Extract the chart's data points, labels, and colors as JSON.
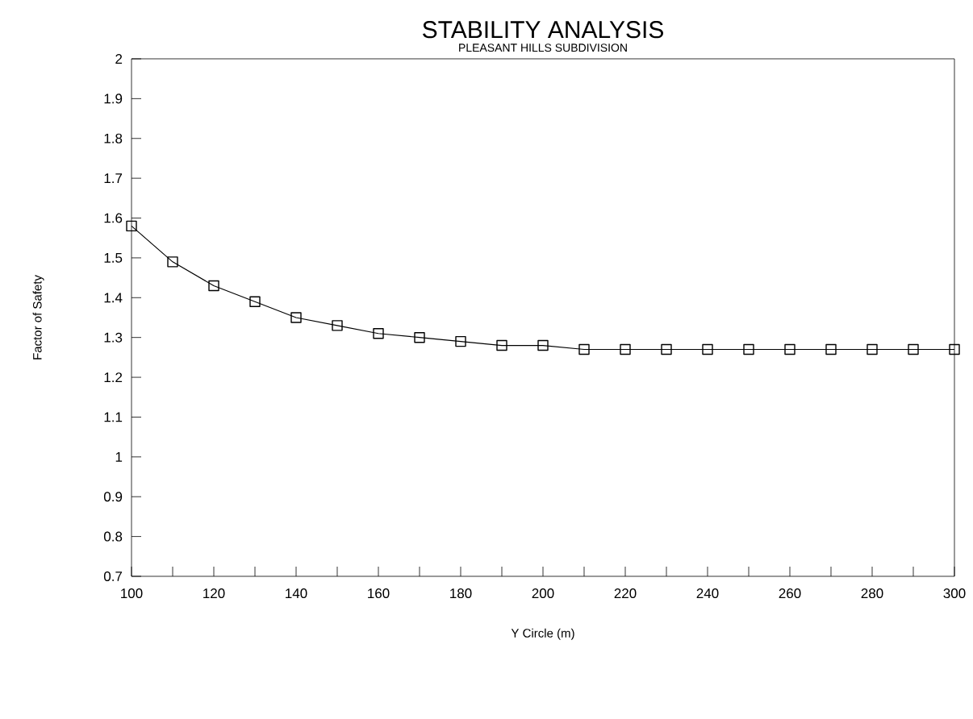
{
  "chart_data": {
    "type": "line",
    "title": "STABILITY ANALYSIS",
    "subtitle": "PLEASANT HILLS SUBDIVISION",
    "xlabel": "Y Circle (m)",
    "ylabel": "Factor of Safety",
    "x": [
      100,
      110,
      120,
      130,
      140,
      150,
      160,
      170,
      180,
      190,
      200,
      210,
      220,
      230,
      240,
      250,
      260,
      270,
      280,
      290,
      300
    ],
    "series": [
      {
        "color": "#000000",
        "values": [
          1.58,
          1.49,
          1.43,
          1.39,
          1.35,
          1.33,
          1.31,
          1.3,
          1.29,
          1.28,
          1.28,
          1.27,
          1.27,
          1.27,
          1.27,
          1.27,
          1.27,
          1.27,
          1.27,
          1.27,
          1.27
        ]
      }
    ],
    "xlim": [
      100,
      300
    ],
    "xticks": [
      100,
      {
        "value": 110,
        "label": null
      },
      120,
      {
        "value": 130,
        "label": null
      },
      140,
      {
        "value": 150,
        "label": null
      },
      160,
      {
        "value": 170,
        "label": null
      },
      180,
      {
        "value": 190,
        "label": null
      },
      200,
      {
        "value": 210,
        "label": null
      },
      220,
      {
        "value": 230,
        "label": null
      },
      240,
      {
        "value": 250,
        "label": null
      },
      260,
      {
        "value": 270,
        "label": null
      },
      280,
      {
        "value": 290,
        "label": null
      },
      300
    ],
    "ylim": [
      0.7,
      2
    ],
    "yticks": [
      0.7,
      0.8,
      0.9,
      1,
      1.1,
      1.2,
      1.3,
      1.4,
      1.5,
      1.6,
      1.7,
      1.8,
      1.9,
      2
    ],
    "grid": false,
    "marker": "square",
    "line_style": "solid"
  }
}
